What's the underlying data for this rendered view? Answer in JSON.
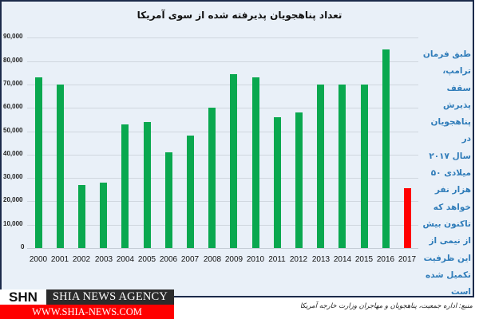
{
  "chart_data": {
    "type": "bar",
    "title": "تعداد پناهجویان پذیرفته شده از سوی آمریکا",
    "xlabel": "",
    "ylabel": "",
    "ylim": [
      0,
      90000
    ],
    "yticks": [
      "0",
      "10,000",
      "20,000",
      "30,000",
      "40,000",
      "50,000",
      "60,000",
      "70,000",
      "80,000",
      "90,000"
    ],
    "grid": true,
    "categories": [
      "2000",
      "2001",
      "2002",
      "2003",
      "2004",
      "2005",
      "2006",
      "2007",
      "2008",
      "2009",
      "2010",
      "2011",
      "2012",
      "2013",
      "2014",
      "2015",
      "2016",
      "2017"
    ],
    "values": [
      73000,
      70000,
      27000,
      28000,
      53000,
      54000,
      41000,
      48000,
      60000,
      74500,
      73000,
      56000,
      58000,
      70000,
      70000,
      70000,
      85000,
      25500
    ],
    "colors": [
      "#0aa84f",
      "#0aa84f",
      "#0aa84f",
      "#0aa84f",
      "#0aa84f",
      "#0aa84f",
      "#0aa84f",
      "#0aa84f",
      "#0aa84f",
      "#0aa84f",
      "#0aa84f",
      "#0aa84f",
      "#0aa84f",
      "#0aa84f",
      "#0aa84f",
      "#0aa84f",
      "#0aa84f",
      "#ff0000"
    ],
    "annotation": "طبق فرمان ترامپ، سقف پذیرش پناهجویان در سال ۲۰۱۷ میلادی ۵۰ هزار نفر خواهد که تاکنون بیش از نیمی از این ظرفیت تکمیل شده است"
  },
  "note_lines": [
    "طبق فرمان",
    "ترامپ، سقف",
    "پذیرش",
    "پناهجویان در",
    "سال ۲۰۱۷",
    "میلادی ۵۰",
    "هزار نفر",
    "خواهد که",
    "تاکنون بیش",
    "از نیمی از",
    "این ظرفیت",
    "تکمیل شده",
    "است"
  ],
  "logo": {
    "short": "SHN",
    "name": "SHIA NEWS AGENCY",
    "url": "WWW.SHIA-NEWS.COM"
  },
  "source": "منبع: اداره جمعیت، پناهجویان و مهاجران وزارت خارجه آمریکا",
  "colors": {
    "panel_bg": "#e9f0f8",
    "border": "#1b2a4a",
    "bar": "#0aa84f",
    "highlight_bar": "#ff0000",
    "note_text": "#2f7cb9"
  }
}
